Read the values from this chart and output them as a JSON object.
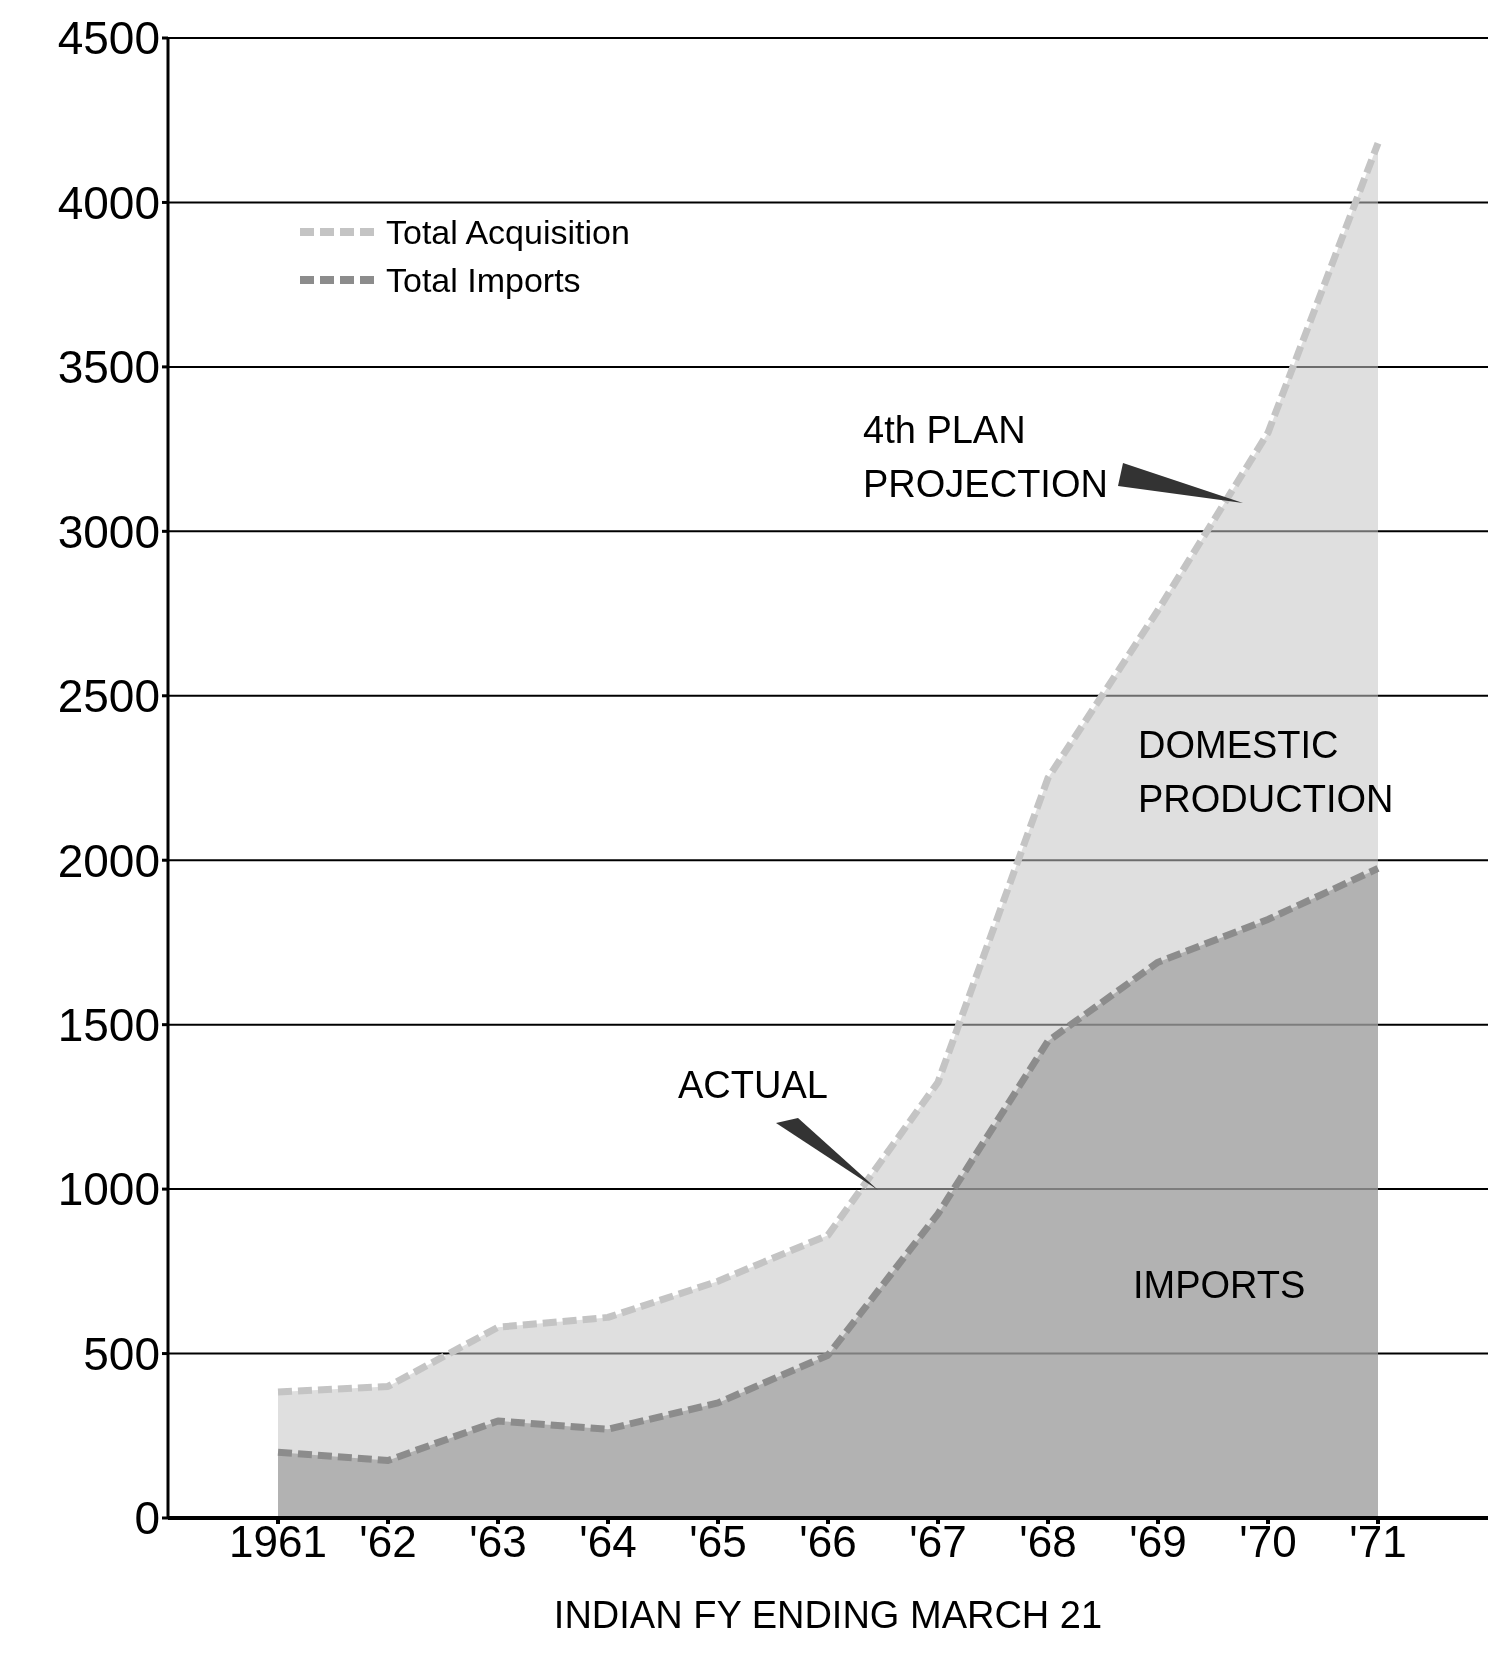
{
  "chart_data": {
    "type": "area",
    "xlabel": "INDIAN FY ENDING MARCH 21",
    "categories": [
      "1961",
      "'62",
      "'63",
      "'64",
      "'65",
      "'66",
      "'67",
      "'68",
      "'69",
      "'70",
      "'71"
    ],
    "series": [
      {
        "name": "Total Acquisition",
        "color": "#c4c4c4",
        "line_style": "dashed",
        "values": [
          383,
          400,
          580,
          610,
          720,
          860,
          1325,
          2250,
          2760,
          3300,
          4180
        ]
      },
      {
        "name": "Total Imports",
        "color": "#8c8c8c",
        "line_style": "dashed",
        "values": [
          200,
          175,
          295,
          270,
          350,
          495,
          925,
          1450,
          1690,
          1820,
          1975
        ]
      }
    ],
    "ylim": [
      0,
      4500
    ],
    "yticks": [
      0,
      500,
      1000,
      1500,
      2000,
      2500,
      3000,
      3500,
      4000,
      4500
    ],
    "grid": "y",
    "legend": "top left",
    "annotations": [
      "4th PLAN PROJECTION",
      "ACTUAL",
      "DOMESTIC PRODUCTION",
      "IMPORTS"
    ]
  }
}
